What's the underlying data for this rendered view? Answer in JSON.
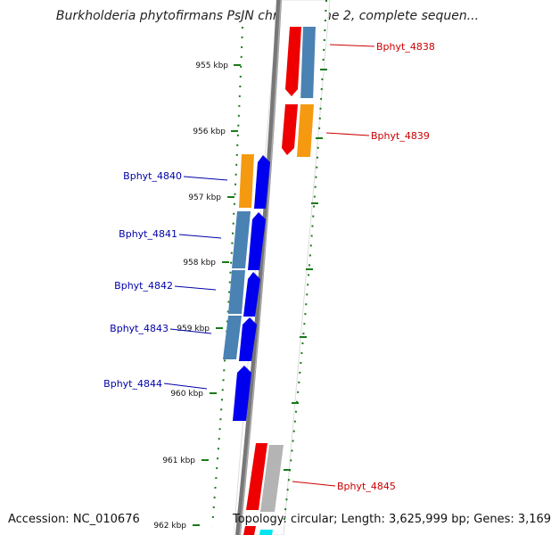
{
  "title": "Burkholderia phytofirmans PsJN chromosome 2, complete sequen...",
  "footer": {
    "accession": "Accession: NC_010676",
    "info": "Topology: circular; Length: 3,625,999 bp; Genes: 3,169"
  },
  "kbp_ticks": [
    {
      "label": "955 kbp",
      "kbp": 955
    },
    {
      "label": "956 kbp",
      "kbp": 956
    },
    {
      "label": "957 kbp",
      "kbp": 957
    },
    {
      "label": "958 kbp",
      "kbp": 958
    },
    {
      "label": "959 kbp",
      "kbp": 959
    },
    {
      "label": "960 kbp",
      "kbp": 960
    },
    {
      "label": "961 kbp",
      "kbp": 961
    },
    {
      "label": "962 kbp",
      "kbp": 962
    }
  ],
  "genes": [
    {
      "label": "Bphyt_4838",
      "strand": "right",
      "label_color": "#cc0000"
    },
    {
      "label": "Bphyt_4839",
      "strand": "right",
      "label_color": "#cc0000"
    },
    {
      "label": "Bphyt_4840",
      "strand": "left",
      "label_color": "#0000aa"
    },
    {
      "label": "Bphyt_4841",
      "strand": "left",
      "label_color": "#0000aa"
    },
    {
      "label": "Bphyt_4842",
      "strand": "left",
      "label_color": "#0000aa"
    },
    {
      "label": "Bphyt_4843",
      "strand": "left",
      "label_color": "#0000aa"
    },
    {
      "label": "Bphyt_4844",
      "strand": "left",
      "label_color": "#0000aa"
    },
    {
      "label": "Bphyt_4845",
      "strand": "right",
      "label_color": "#cc0000"
    }
  ],
  "colors": {
    "backbone": "#777777",
    "cds_red": "#ee0000",
    "gene_blue": "#4a82b4",
    "gene_orange": "#f59a10",
    "gene_grey": "#b4b4b4",
    "cds_dark_blue": "#0000ee",
    "tick_green": "#1a7a1a",
    "cyan": "#00e5ee"
  }
}
